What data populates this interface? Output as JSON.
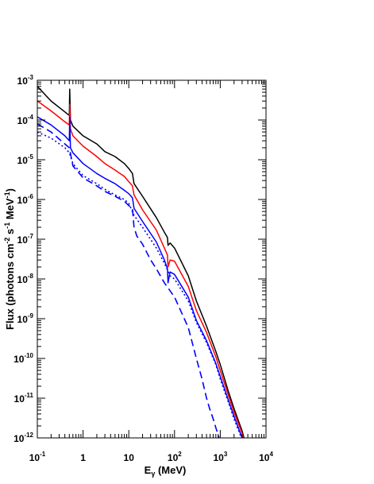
{
  "chart_data": {
    "type": "line",
    "title": "",
    "xlabel": "E_γ (MeV)",
    "ylabel": "Flux (photons cm^-2 s^-1 MeV^-1)",
    "x_scale": "log",
    "y_scale": "log",
    "xlim": [
      0.1,
      10000
    ],
    "ylim": [
      1e-12,
      0.001
    ],
    "grid": false,
    "legend": "none",
    "x_ticks": [
      {
        "base": "10",
        "exp": "-1"
      },
      {
        "base": "1",
        "exp": ""
      },
      {
        "base": "10",
        "exp": ""
      },
      {
        "base": "10",
        "exp": "2"
      },
      {
        "base": "10",
        "exp": "3"
      },
      {
        "base": "10",
        "exp": "4"
      }
    ],
    "y_ticks": [
      {
        "base": "10",
        "exp": "-3"
      },
      {
        "base": "10",
        "exp": "-4"
      },
      {
        "base": "10",
        "exp": "-5"
      },
      {
        "base": "10",
        "exp": "-6"
      },
      {
        "base": "10",
        "exp": "-7"
      },
      {
        "base": "10",
        "exp": "-8"
      },
      {
        "base": "10",
        "exp": "-9"
      },
      {
        "base": "10",
        "exp": "-10"
      },
      {
        "base": "10",
        "exp": "-11"
      },
      {
        "base": "10",
        "exp": "-12"
      }
    ],
    "series": [
      {
        "color": "#000000",
        "style": "solid",
        "x": [
          0.1,
          0.2,
          0.4,
          0.5,
          0.51,
          0.53,
          0.6,
          1,
          2,
          3,
          5,
          8,
          10,
          12,
          13,
          20,
          40,
          60,
          70,
          72,
          80,
          100,
          200,
          300,
          500,
          800,
          1000,
          1500,
          2000,
          3000,
          3300,
          3500
        ],
        "y": [
          0.0007,
          0.0003,
          0.00016,
          0.00013,
          0.0006,
          0.0001,
          7e-05,
          4e-05,
          2.5e-05,
          1.6e-05,
          1.2e-05,
          8e-06,
          6e-06,
          4.5e-06,
          2.5e-06,
          1.2e-06,
          3.5e-07,
          1.5e-07,
          1.1e-07,
          7e-08,
          8e-08,
          6e-08,
          1.2e-08,
          2.8e-09,
          6.5e-10,
          1.5e-10,
          7e-11,
          1.5e-11,
          5.5e-12,
          1.5e-12,
          1e-12,
          8e-13
        ]
      },
      {
        "color": "#ff0000",
        "style": "solid",
        "x": [
          0.1,
          0.2,
          0.4,
          0.5,
          0.51,
          0.53,
          0.6,
          1,
          2,
          3,
          5,
          8,
          10,
          12,
          13,
          20,
          40,
          60,
          70,
          72,
          80,
          100,
          200,
          300,
          500,
          800,
          1000,
          1500,
          2000,
          3000,
          3300,
          3500
        ],
        "y": [
          0.0003,
          0.00017,
          9e-05,
          7.5e-05,
          0.00025,
          6e-05,
          4e-05,
          2.2e-05,
          1.2e-05,
          8e-06,
          5.5e-06,
          3.8e-06,
          2.8e-06,
          2.2e-06,
          1.3e-06,
          5.5e-07,
          1.7e-07,
          6e-08,
          4e-08,
          2e-08,
          3e-08,
          2.8e-08,
          6.5e-09,
          1.6e-09,
          4.5e-10,
          1.1e-10,
          5e-11,
          1.2e-11,
          4.5e-12,
          1.3e-12,
          9e-13,
          7e-13
        ]
      },
      {
        "color": "#0000ff",
        "style": "solid",
        "x": [
          0.1,
          0.2,
          0.4,
          0.5,
          0.51,
          0.53,
          0.6,
          1,
          2,
          3,
          5,
          8,
          10,
          12,
          13,
          20,
          40,
          60,
          70,
          72,
          80,
          100,
          200,
          300,
          500,
          800,
          1000,
          1500,
          2000,
          3000,
          3300,
          3500
        ],
        "y": [
          0.00012,
          7.5e-05,
          4e-05,
          3e-05,
          0.00012,
          2e-05,
          1.5e-05,
          8e-06,
          4.5e-06,
          3.4e-06,
          2.5e-06,
          1.7e-06,
          1.4e-06,
          1.1e-06,
          6e-07,
          2.8e-07,
          8.5e-08,
          3e-08,
          1.8e-08,
          8e-09,
          1.5e-08,
          1.3e-08,
          3.5e-09,
          9e-10,
          2.8e-10,
          7.5e-11,
          3.5e-11,
          9e-12,
          3.5e-12,
          1e-12,
          8e-13,
          6e-13
        ]
      },
      {
        "color": "#0000ff",
        "style": "dotted",
        "x": [
          0.1,
          0.2,
          0.4,
          0.5,
          0.6,
          1,
          2,
          3,
          5,
          8,
          10,
          13,
          20,
          40,
          60,
          80,
          100,
          200,
          300,
          500,
          800,
          1000,
          1500,
          2000,
          3000
        ],
        "y": [
          5e-05,
          3.5e-05,
          2e-05,
          1.5e-05,
          8e-06,
          4e-06,
          2.5e-06,
          1.8e-06,
          1.3e-06,
          1e-06,
          8e-07,
          4e-07,
          2e-07,
          6e-08,
          2.5e-08,
          1.2e-08,
          1e-08,
          2.8e-09,
          8e-10,
          2.5e-10,
          7e-11,
          3e-11,
          8e-12,
          3e-12,
          9e-13
        ]
      },
      {
        "color": "#0000ff",
        "style": "dashed",
        "x": [
          0.1,
          0.2,
          0.4,
          0.5,
          0.6,
          1,
          2,
          3,
          5,
          8,
          10,
          12,
          13,
          15,
          20,
          30,
          40,
          60,
          100,
          200,
          300,
          400,
          500,
          600,
          700,
          800,
          900,
          1000
        ],
        "y": [
          8e-05,
          5e-05,
          2.5e-05,
          2e-05,
          7e-06,
          3.5e-06,
          2.2e-06,
          1.6e-06,
          1.2e-06,
          9e-07,
          7e-07,
          6e-07,
          2e-07,
          1.2e-07,
          7.5e-08,
          3e-08,
          1.8e-08,
          8e-09,
          3.5e-09,
          6e-10,
          1e-10,
          3e-11,
          1e-11,
          5e-12,
          3e-12,
          1.8e-12,
          1.2e-12,
          7e-13
        ]
      }
    ]
  }
}
